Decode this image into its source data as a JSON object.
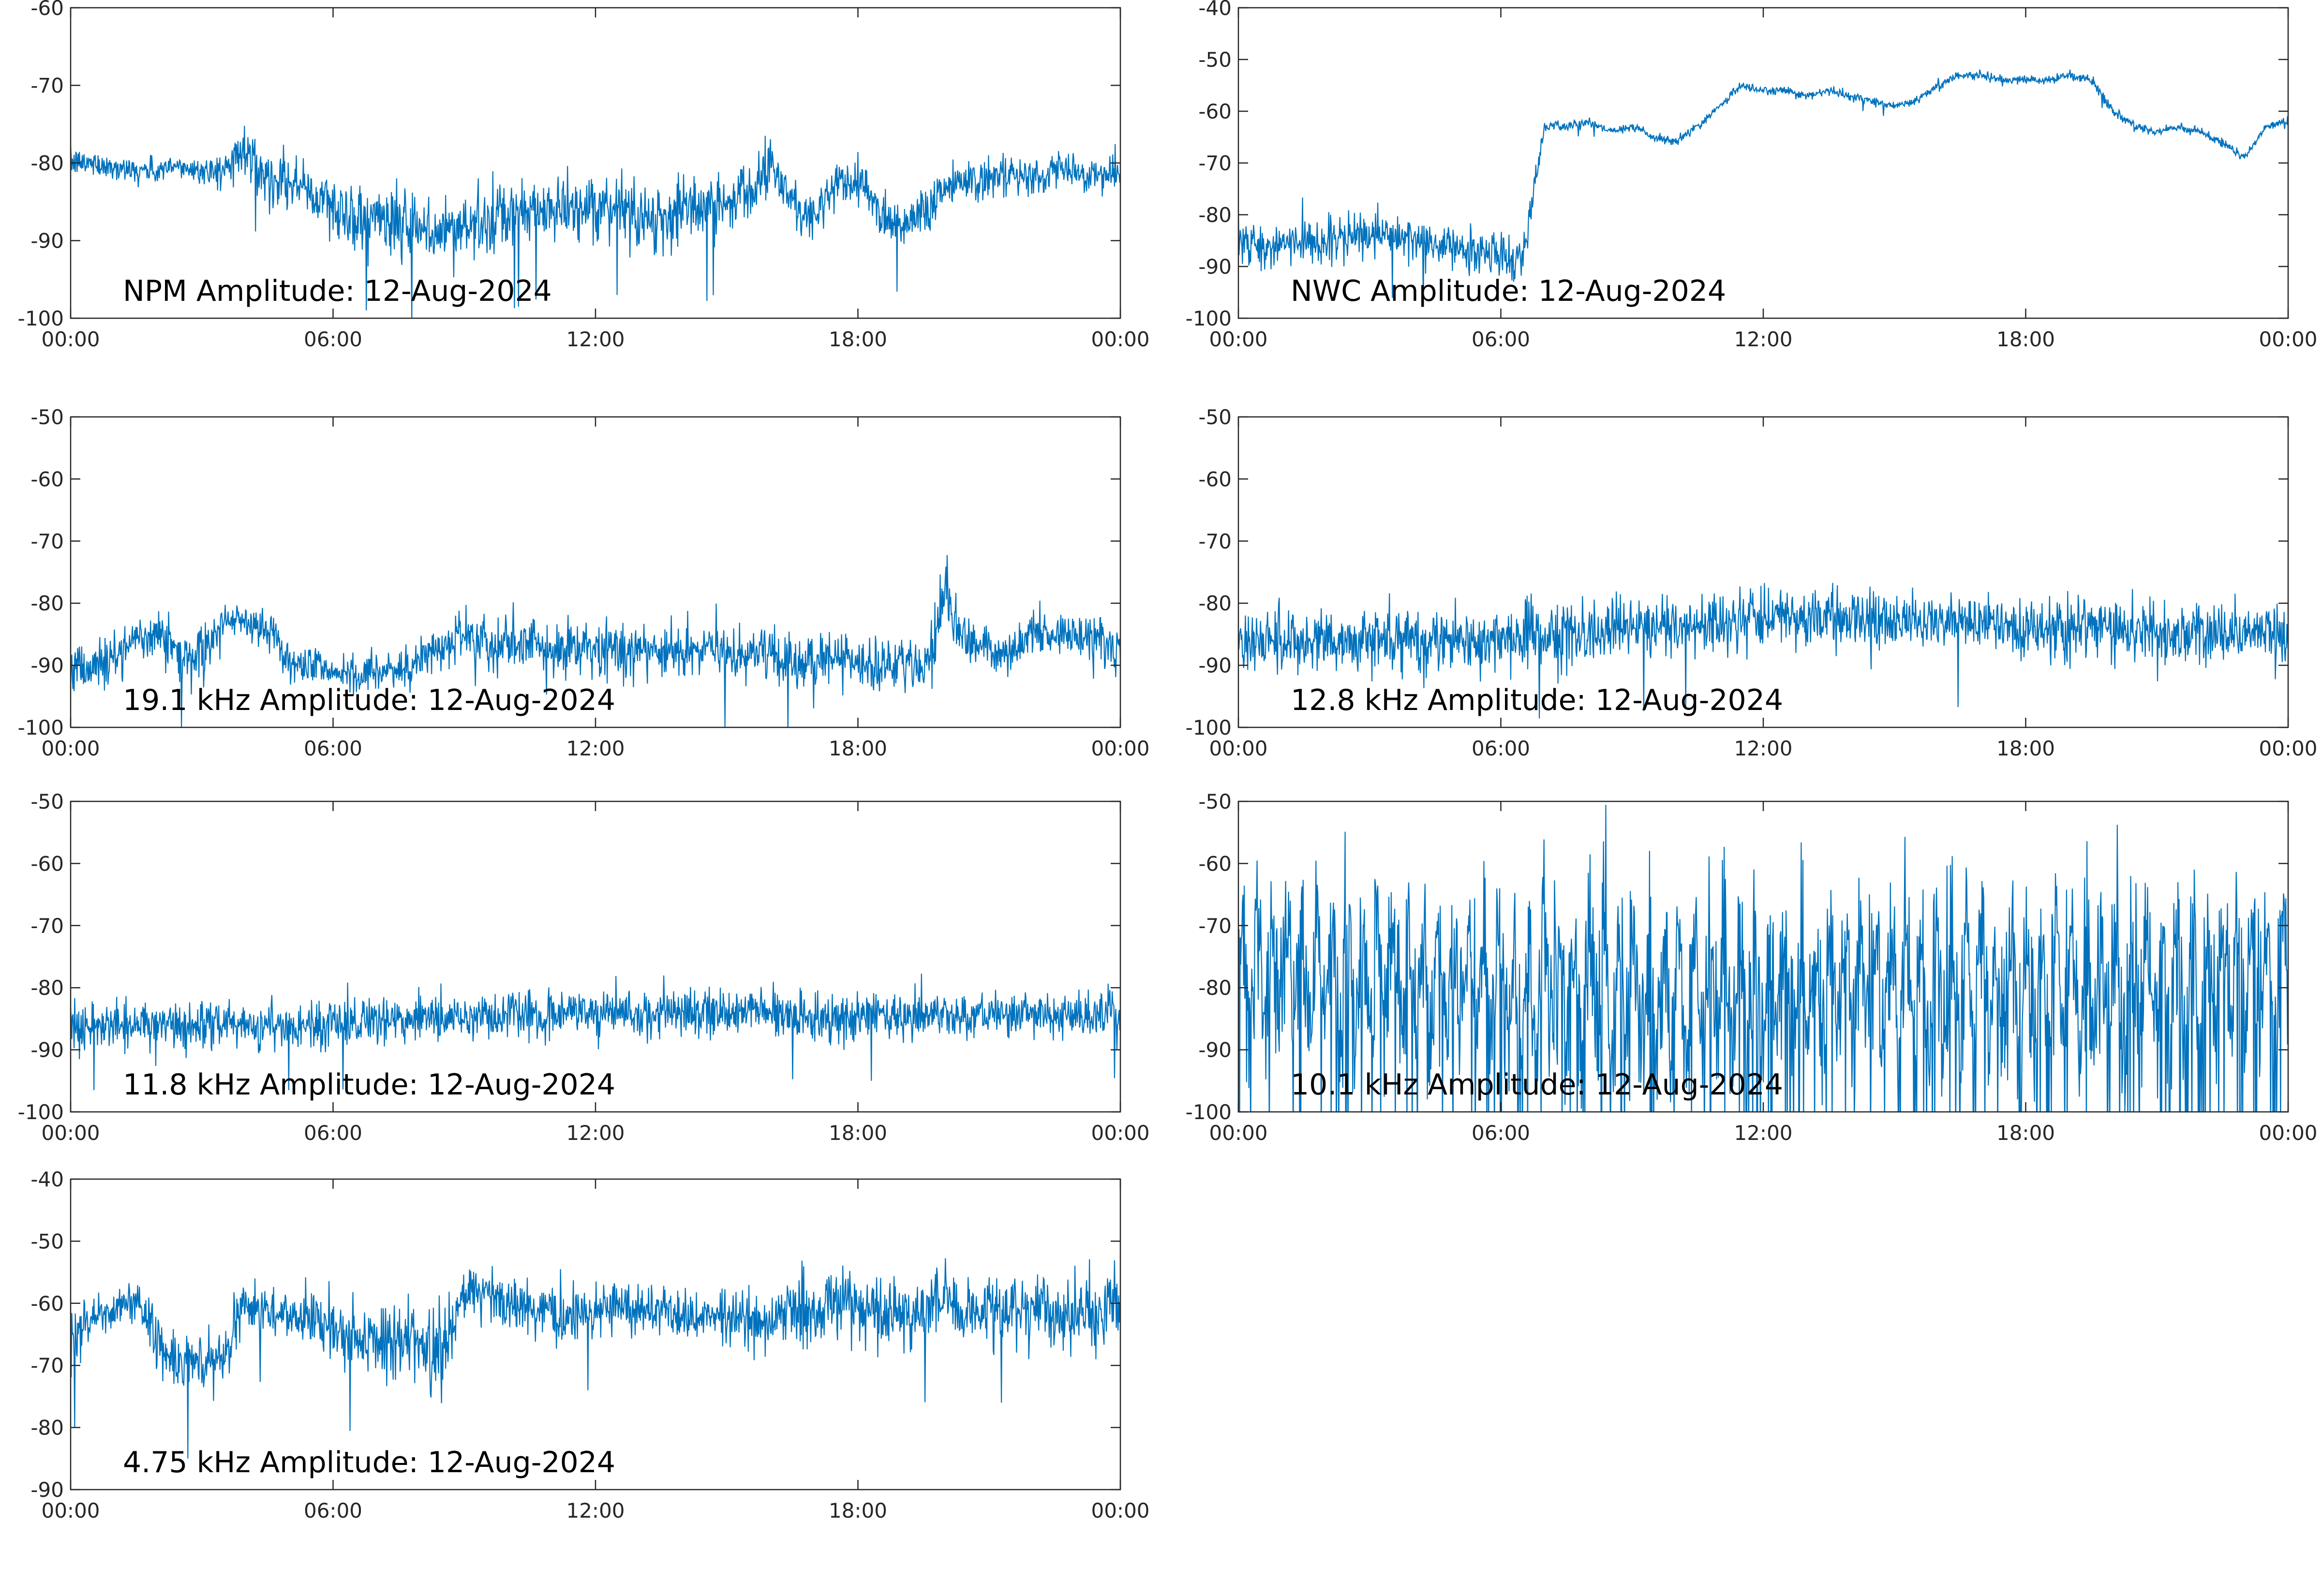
{
  "figure": {
    "trace_color": "#0072bd",
    "axes_color": "#262626",
    "background": "#ffffff"
  },
  "chart_data": [
    {
      "type": "line",
      "title": "NPM Amplitude: 12-Aug-2024",
      "x_ticks": [
        "00:00",
        "06:00",
        "12:00",
        "18:00",
        "00:00"
      ],
      "xlim_hours": [
        0,
        24
      ],
      "y_ticks": [
        "-60",
        "-70",
        "-80",
        "-90",
        "-100"
      ],
      "ylim": [
        -100,
        -60
      ],
      "grid": false,
      "noisy_trace": true,
      "series": [
        {
          "x": [
            0,
            0.5,
            1,
            1.5,
            2,
            2.5,
            3,
            3.5,
            4,
            4.5,
            5,
            5.5,
            6,
            6.5,
            7,
            7.5,
            8,
            8.5,
            9,
            9.5,
            10,
            10.5,
            11,
            11.5,
            12,
            12.5,
            13,
            13.5,
            14,
            14.5,
            15,
            15.5,
            16,
            16.5,
            17,
            17.5,
            18,
            18.5,
            19,
            19.5,
            20,
            20.5,
            21,
            21.5,
            22,
            22.5,
            23,
            23.5,
            24
          ],
          "y": [
            -80,
            -80,
            -80.5,
            -81,
            -81,
            -80.5,
            -81,
            -81,
            -78,
            -82,
            -82,
            -84,
            -86,
            -87,
            -87,
            -88,
            -89,
            -89,
            -88,
            -88,
            -87,
            -86,
            -86,
            -86,
            -87,
            -85,
            -87,
            -87,
            -86,
            -86,
            -85,
            -83,
            -80,
            -85,
            -87,
            -83,
            -82,
            -86,
            -88,
            -86,
            -83,
            -82,
            -82,
            -82,
            -82,
            -81,
            -81,
            -81.5,
            -82
          ],
          "noise": [
            1.5,
            1.5,
            1.5,
            1.5,
            1.5,
            1.5,
            1.5,
            2,
            3,
            3,
            3,
            3,
            4,
            4,
            4,
            4,
            4,
            4,
            4,
            4,
            4,
            4,
            3.5,
            3.5,
            3.5,
            4,
            4,
            4,
            4,
            4,
            3.5,
            3.5,
            3,
            3.5,
            3,
            3,
            3,
            3,
            3,
            3,
            3,
            2.5,
            2.5,
            2.5,
            2,
            2,
            2,
            2,
            2
          ]
        }
      ]
    },
    {
      "type": "line",
      "title": "NWC Amplitude: 12-Aug-2024",
      "x_ticks": [
        "00:00",
        "06:00",
        "12:00",
        "18:00",
        "00:00"
      ],
      "xlim_hours": [
        0,
        24
      ],
      "y_ticks": [
        "-40",
        "-50",
        "-60",
        "-70",
        "-80",
        "-90",
        "-100"
      ],
      "ylim": [
        -100,
        -40
      ],
      "grid": false,
      "noisy_trace": true,
      "series": [
        {
          "x": [
            0,
            0.5,
            1,
            1.5,
            2,
            2.5,
            3,
            3.5,
            4,
            4.5,
            5,
            5.5,
            6,
            6.5,
            7,
            7.5,
            8,
            8.5,
            9,
            9.5,
            10,
            10.5,
            11,
            11.5,
            12,
            12.5,
            13,
            13.5,
            14,
            14.5,
            15,
            15.5,
            16,
            16.5,
            17,
            17.5,
            18,
            18.5,
            19,
            19.5,
            20,
            20.5,
            21,
            21.5,
            22,
            22.5,
            23,
            23.5,
            24
          ],
          "y": [
            -85,
            -86,
            -86,
            -85,
            -85,
            -85,
            -84,
            -84,
            -85,
            -86,
            -87,
            -87,
            -88,
            -88,
            -63,
            -63,
            -62,
            -64,
            -63,
            -65,
            -66,
            -63,
            -59,
            -55,
            -56,
            -56,
            -57,
            -56,
            -57,
            -58,
            -59,
            -58,
            -55,
            -53,
            -53,
            -54,
            -54,
            -54,
            -53,
            -54,
            -60,
            -63,
            -64,
            -63,
            -64,
            -66,
            -69,
            -63,
            -62
          ],
          "noise": [
            4,
            4,
            4,
            4,
            4,
            4,
            4,
            4,
            4,
            4,
            4,
            4,
            4,
            4,
            1,
            0.8,
            0.8,
            0.8,
            0.8,
            0.8,
            0.8,
            0.8,
            0.8,
            0.8,
            0.8,
            0.8,
            0.8,
            0.8,
            0.8,
            0.8,
            0.8,
            0.8,
            0.8,
            0.8,
            0.8,
            0.8,
            0.8,
            0.8,
            0.8,
            0.8,
            0.8,
            0.8,
            0.8,
            0.8,
            0.8,
            0.8,
            0.8,
            0.8,
            0.8
          ]
        }
      ]
    },
    {
      "type": "line",
      "title": "19.1 kHz Amplitude: 12-Aug-2024",
      "x_ticks": [
        "00:00",
        "06:00",
        "12:00",
        "18:00",
        "00:00"
      ],
      "xlim_hours": [
        0,
        24
      ],
      "y_ticks": [
        "-50",
        "-60",
        "-70",
        "-80",
        "-90",
        "-100"
      ],
      "ylim": [
        -100,
        -50
      ],
      "grid": false,
      "noisy_trace": true,
      "series": [
        {
          "x": [
            0,
            0.5,
            1,
            1.5,
            2,
            2.5,
            3,
            3.5,
            4,
            4.5,
            5,
            5.5,
            6,
            6.5,
            7,
            7.5,
            8,
            8.5,
            9,
            9.5,
            10,
            10.5,
            11,
            11.5,
            12,
            12.5,
            13,
            13.5,
            14,
            14.5,
            15,
            15.5,
            16,
            16.5,
            17,
            17.5,
            18,
            18.5,
            19,
            19.5,
            20,
            20.5,
            21,
            21.5,
            22,
            22.5,
            23,
            23.5,
            24
          ],
          "y": [
            -91,
            -90,
            -89,
            -85,
            -85,
            -88,
            -88,
            -83,
            -83,
            -84,
            -90,
            -90,
            -91,
            -91,
            -91,
            -91,
            -89,
            -87,
            -86,
            -86,
            -86,
            -87,
            -87,
            -87,
            -87,
            -88,
            -88,
            -88,
            -87,
            -87,
            -88,
            -88,
            -88,
            -89,
            -89,
            -89,
            -89,
            -90,
            -90,
            -90,
            -80,
            -87,
            -87,
            -88,
            -85,
            -85,
            -85,
            -86,
            -88
          ],
          "noise": [
            4,
            4,
            4,
            3,
            3,
            4,
            4,
            2.5,
            2.5,
            3,
            3,
            3,
            3,
            3,
            3,
            3,
            3.5,
            4,
            4,
            4,
            4,
            4,
            4,
            4,
            4,
            4,
            4,
            4,
            4,
            4,
            4,
            4,
            4,
            4,
            4,
            4,
            4,
            4,
            4,
            4,
            6,
            3,
            3,
            3,
            3,
            3,
            3,
            4,
            4
          ]
        }
      ]
    },
    {
      "type": "line",
      "title": "12.8 kHz Amplitude: 12-Aug-2024",
      "x_ticks": [
        "00:00",
        "06:00",
        "12:00",
        "18:00",
        "00:00"
      ],
      "xlim_hours": [
        0,
        24
      ],
      "y_ticks": [
        "-50",
        "-60",
        "-70",
        "-80",
        "-90",
        "-100"
      ],
      "ylim": [
        -100,
        -50
      ],
      "grid": false,
      "noisy_trace": true,
      "series": [
        {
          "x": [
            0,
            1,
            2,
            3,
            4,
            5,
            6,
            7,
            8,
            9,
            10,
            11,
            12,
            13,
            14,
            15,
            16,
            17,
            18,
            19,
            20,
            21,
            22,
            23,
            24
          ],
          "y": [
            -86,
            -86,
            -86,
            -86,
            -86,
            -86,
            -85.5,
            -85,
            -85,
            -84,
            -83.5,
            -83,
            -82.5,
            -82.5,
            -82.5,
            -83,
            -83,
            -83.5,
            -84,
            -84,
            -84.5,
            -85,
            -85,
            -85,
            -85.5
          ],
          "noise": [
            4.5,
            4.5,
            4.5,
            4.5,
            4.5,
            4.5,
            4.5,
            4.5,
            4.5,
            4.5,
            4.5,
            4.5,
            4.5,
            4.5,
            4.5,
            4.5,
            4.5,
            4.5,
            4.5,
            4.5,
            4.5,
            4.5,
            4.5,
            4.5,
            4.5
          ]
        }
      ]
    },
    {
      "type": "line",
      "title": "11.8 kHz Amplitude: 12-Aug-2024",
      "x_ticks": [
        "00:00",
        "06:00",
        "12:00",
        "18:00",
        "00:00"
      ],
      "xlim_hours": [
        0,
        24
      ],
      "y_ticks": [
        "-50",
        "-60",
        "-70",
        "-80",
        "-90",
        "-100"
      ],
      "ylim": [
        -100,
        -50
      ],
      "grid": false,
      "noisy_trace": true,
      "series": [
        {
          "x": [
            0,
            1,
            2,
            3,
            4,
            5,
            6,
            7,
            8,
            9,
            10,
            11,
            12,
            13,
            14,
            15,
            16,
            17,
            18,
            19,
            20,
            21,
            22,
            23,
            24
          ],
          "y": [
            -86,
            -86,
            -86,
            -86,
            -86,
            -86,
            -86,
            -85.5,
            -85,
            -84.5,
            -84,
            -84,
            -84,
            -84,
            -84,
            -84,
            -84,
            -84.5,
            -84.5,
            -84.5,
            -84.5,
            -84.5,
            -84.5,
            -84.5,
            -84
          ],
          "noise": [
            3.5,
            3.5,
            3.5,
            3.5,
            3.5,
            3.5,
            3.5,
            3.5,
            3.5,
            3.5,
            3.5,
            3.5,
            3.5,
            3.5,
            3.5,
            3.5,
            3.5,
            3.5,
            3.5,
            3.5,
            3.5,
            3.5,
            3.5,
            3.5,
            3.5
          ]
        }
      ]
    },
    {
      "type": "line",
      "title": "10.1 kHz Amplitude: 12-Aug-2024",
      "x_ticks": [
        "00:00",
        "06:00",
        "12:00",
        "18:00",
        "00:00"
      ],
      "xlim_hours": [
        0,
        24
      ],
      "y_ticks": [
        "-50",
        "-60",
        "-70",
        "-80",
        "-90",
        "-100"
      ],
      "ylim": [
        -100,
        -50
      ],
      "grid": false,
      "noisy_trace": true,
      "series": [
        {
          "x": [
            0,
            1,
            2,
            3,
            4,
            5,
            6,
            7,
            8,
            9,
            10,
            11,
            12,
            13,
            14,
            15,
            16,
            17,
            18,
            19,
            20,
            21,
            22,
            23,
            24
          ],
          "y": [
            -78,
            -78,
            -78,
            -78,
            -78,
            -79,
            -80,
            -80,
            -80,
            -80,
            -80,
            -80,
            -80,
            -80,
            -80,
            -80,
            -80,
            -80,
            -80,
            -80,
            -80,
            -80,
            -80,
            -78,
            -76
          ],
          "noise": [
            14,
            14,
            14,
            14,
            14,
            14,
            15,
            15,
            15,
            15,
            15,
            15,
            15,
            15,
            15,
            15,
            15,
            15,
            15,
            15,
            15,
            15,
            15,
            14,
            14
          ]
        }
      ]
    },
    {
      "type": "line",
      "title": "4.75 kHz Amplitude: 12-Aug-2024",
      "x_ticks": [
        "00:00",
        "06:00",
        "12:00",
        "18:00",
        "00:00"
      ],
      "xlim_hours": [
        0,
        24
      ],
      "y_ticks": [
        "-40",
        "-50",
        "-60",
        "-70",
        "-80",
        "-90"
      ],
      "ylim": [
        -90,
        -40
      ],
      "grid": false,
      "noisy_trace": true,
      "series": [
        {
          "x": [
            0,
            0.5,
            1,
            1.5,
            2,
            2.5,
            3,
            3.5,
            4,
            4.5,
            5,
            5.5,
            6,
            6.5,
            7,
            7.5,
            8,
            8.5,
            9,
            9.5,
            10,
            10.5,
            11,
            11.5,
            12,
            12.5,
            13,
            13.5,
            14,
            14.5,
            15,
            15.5,
            16,
            16.5,
            17,
            17.5,
            18,
            18.5,
            19,
            19.5,
            20,
            20.5,
            21,
            21.5,
            22,
            22.5,
            23,
            23.5,
            24
          ],
          "y": [
            -67,
            -62,
            -61,
            -59,
            -67,
            -70,
            -70,
            -68,
            -60,
            -61,
            -62,
            -62,
            -64,
            -66,
            -66,
            -67,
            -66,
            -68,
            -58,
            -57,
            -61,
            -60,
            -61,
            -62,
            -62,
            -60,
            -61,
            -61,
            -62,
            -62,
            -62,
            -63,
            -63,
            -61,
            -61,
            -60,
            -61,
            -61,
            -62,
            -61,
            -60,
            -61,
            -61,
            -61,
            -61,
            -62,
            -62,
            -63,
            -61
          ],
          "noise": [
            5,
            3,
            3,
            3,
            5,
            5,
            5,
            5,
            4,
            4,
            4,
            4,
            5,
            5,
            5,
            6,
            6,
            6,
            4,
            4,
            4,
            4,
            4,
            4,
            4,
            4,
            4,
            4,
            4,
            4,
            4,
            4,
            4,
            5,
            5,
            5,
            5,
            5,
            5,
            5,
            5,
            5,
            5,
            5,
            5,
            5,
            6,
            6,
            6
          ]
        }
      ]
    }
  ]
}
